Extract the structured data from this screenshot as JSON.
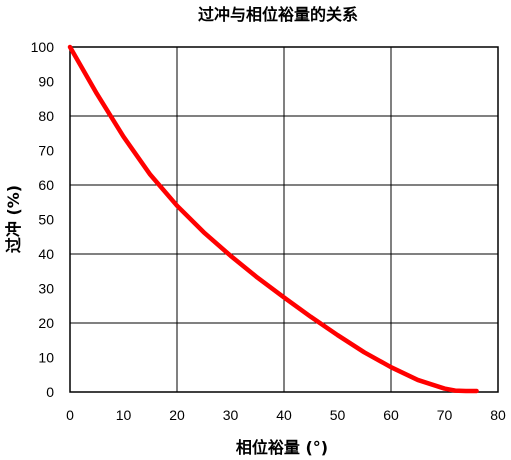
{
  "chart_data": {
    "type": "line",
    "title": "过冲与相位裕量的关系",
    "xlabel": "相位裕量 (°)",
    "ylabel": "过冲 (%)",
    "xlim": [
      0,
      80
    ],
    "ylim": [
      0,
      100
    ],
    "x_ticks": [
      "0",
      "10",
      "20",
      "30",
      "40",
      "50",
      "60",
      "70",
      "80"
    ],
    "y_ticks": [
      "0",
      "10",
      "20",
      "30",
      "40",
      "50",
      "60",
      "70",
      "80",
      "90",
      "100"
    ],
    "grid": true,
    "series": [
      {
        "color": "#ff0000",
        "x": [
          0,
          5,
          10,
          15,
          20,
          25,
          30,
          35,
          40,
          45,
          50,
          55,
          60,
          65,
          70,
          72,
          74,
          76
        ],
        "y": [
          100,
          86.5,
          74,
          63,
          54,
          46.3,
          39.5,
          33.2,
          27.4,
          21.8,
          16.5,
          11.5,
          7.2,
          3.5,
          1,
          0.4,
          0.3,
          0.3
        ]
      }
    ]
  }
}
